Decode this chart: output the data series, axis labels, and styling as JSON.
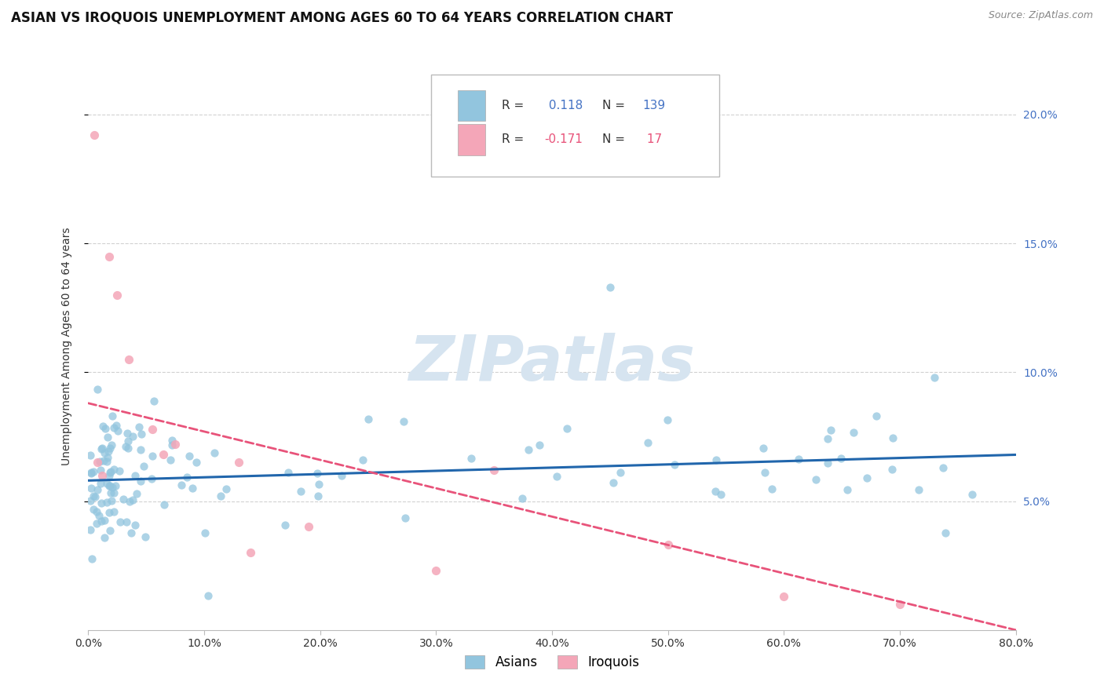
{
  "title": "ASIAN VS IROQUOIS UNEMPLOYMENT AMONG AGES 60 TO 64 YEARS CORRELATION CHART",
  "source": "Source: ZipAtlas.com",
  "ylabel": "Unemployment Among Ages 60 to 64 years",
  "xlim": [
    0.0,
    0.8
  ],
  "ylim": [
    0.0,
    0.22
  ],
  "asian_R": 0.118,
  "asian_N": 139,
  "iroquois_R": -0.171,
  "iroquois_N": 17,
  "asian_color": "#92c5de",
  "iroquois_color": "#f4a6b8",
  "asian_line_color": "#2166ac",
  "iroquois_line_color": "#e8537a",
  "watermark": "ZIPatlas",
  "watermark_color": "#d6e4f0",
  "background_color": "#ffffff",
  "grid_color": "#cccccc",
  "title_fontsize": 12,
  "axis_label_fontsize": 10,
  "tick_fontsize": 10,
  "right_tick_color": "#4472c4",
  "asian_trend_y_start": 0.058,
  "asian_trend_y_end": 0.068,
  "iroquois_trend_y_start": 0.088,
  "iroquois_trend_y_end": 0.0
}
